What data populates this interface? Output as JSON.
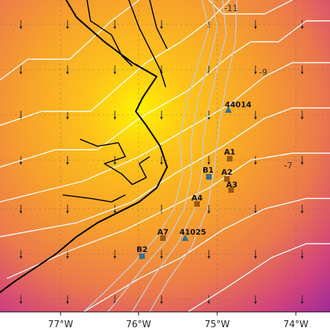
{
  "map": {
    "x_axis_labels": [
      "77°W",
      "76°W",
      "75°W",
      "74°W"
    ],
    "contour_labels": [
      "-11",
      "-9",
      "-7"
    ],
    "stations": [
      "44014",
      "A1",
      "B1",
      "A2",
      "A3",
      "A4",
      "A7",
      "41025",
      "B2"
    ]
  }
}
